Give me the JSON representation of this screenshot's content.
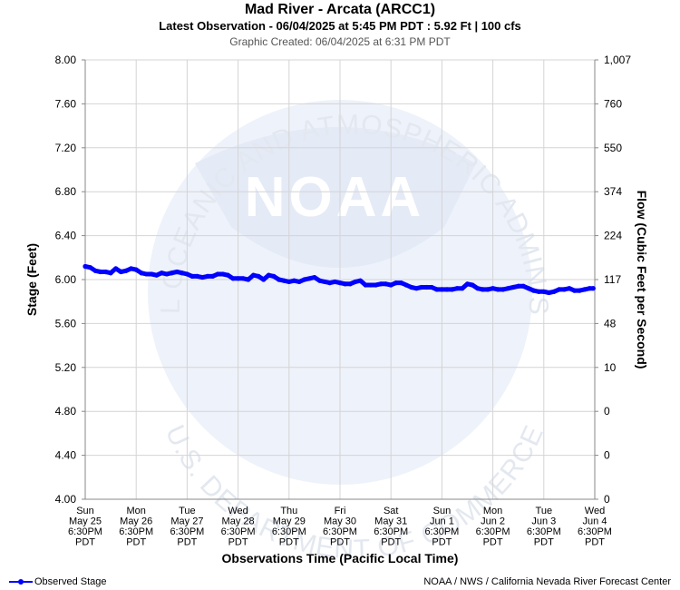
{
  "header": {
    "title": "Mad River - Arcata (ARCC1)",
    "subtitle": "Latest Observation - 06/04/2025 at 5:45 PM PDT : 5.92 Ft | 100 cfs",
    "created": "Graphic Created: 06/04/2025 at 6:31 PM PDT"
  },
  "watermark": {
    "agency_text": "NATIONAL OCEANIC AND ATMOSPHERIC ADMINISTRATION",
    "dept_text": "U.S. DEPARTMENT OF COMMERCE",
    "logo_text": "NOAA",
    "colors": {
      "circle": "#eef2fa",
      "band": "#e4eaf6",
      "inner": "#ffffff"
    }
  },
  "footer": {
    "legend_label": "Observed Stage",
    "credit": "NOAA / NWS / California Nevada River Forecast Center"
  },
  "chart_data": {
    "type": "line",
    "title": "Mad River - Arcata (ARCC1)",
    "xlabel": "Observations Time (Pacific Local Time)",
    "ylabel": "Stage (Feet)",
    "y2label": "Flow (Cubic Feet per Second)",
    "ylim": [
      4.0,
      8.0
    ],
    "yticks": [
      "4.00",
      "4.40",
      "4.80",
      "5.20",
      "5.60",
      "6.00",
      "6.40",
      "6.80",
      "7.20",
      "7.60",
      "8.00"
    ],
    "y2ticks": [
      "0",
      "0",
      "0",
      "10",
      "48",
      "117",
      "224",
      "374",
      "550",
      "760",
      "1,007"
    ],
    "xticks": [
      [
        "Sun",
        "May 25",
        "6:30PM",
        "PDT"
      ],
      [
        "Mon",
        "May 26",
        "6:30PM",
        "PDT"
      ],
      [
        "Tue",
        "May 27",
        "6:30PM",
        "PDT"
      ],
      [
        "Wed",
        "May 28",
        "6:30PM",
        "PDT"
      ],
      [
        "Thu",
        "May 29",
        "6:30PM",
        "PDT"
      ],
      [
        "Fri",
        "May 30",
        "6:30PM",
        "PDT"
      ],
      [
        "Sat",
        "May 31",
        "6:30PM",
        "PDT"
      ],
      [
        "Sun",
        "Jun 1",
        "6:30PM",
        "PDT"
      ],
      [
        "Mon",
        "Jun 2",
        "6:30PM",
        "PDT"
      ],
      [
        "Tue",
        "Jun 3",
        "6:30PM",
        "PDT"
      ],
      [
        "Wed",
        "Jun 4",
        "6:30PM",
        "PDT"
      ]
    ],
    "grid": true,
    "legend_position": "bottom-left",
    "series": [
      {
        "name": "Observed Stage",
        "color": "#0000ff",
        "x": [
          0,
          0.1,
          0.2,
          0.3,
          0.4,
          0.5,
          0.6,
          0.7,
          0.8,
          0.9,
          1.0,
          1.1,
          1.2,
          1.3,
          1.4,
          1.5,
          1.6,
          1.7,
          1.8,
          1.9,
          2.0,
          2.1,
          2.2,
          2.3,
          2.4,
          2.5,
          2.6,
          2.7,
          2.8,
          2.9,
          3.0,
          3.1,
          3.2,
          3.3,
          3.4,
          3.5,
          3.6,
          3.7,
          3.8,
          3.9,
          4.0,
          4.1,
          4.2,
          4.3,
          4.4,
          4.5,
          4.6,
          4.7,
          4.8,
          4.9,
          5.0,
          5.1,
          5.2,
          5.3,
          5.4,
          5.5,
          5.6,
          5.7,
          5.8,
          5.9,
          6.0,
          6.1,
          6.2,
          6.3,
          6.4,
          6.5,
          6.6,
          6.7,
          6.8,
          6.9,
          7.0,
          7.1,
          7.2,
          7.3,
          7.4,
          7.5,
          7.6,
          7.7,
          7.8,
          7.9,
          8.0,
          8.1,
          8.2,
          8.3,
          8.4,
          8.5,
          8.6,
          8.7,
          8.8,
          8.9,
          9.0,
          9.1,
          9.2,
          9.3,
          9.4,
          9.5,
          9.6,
          9.7,
          9.8,
          9.9,
          9.97
        ],
        "y": [
          6.12,
          6.11,
          6.08,
          6.07,
          6.07,
          6.06,
          6.1,
          6.07,
          6.08,
          6.1,
          6.09,
          6.06,
          6.05,
          6.05,
          6.04,
          6.06,
          6.05,
          6.06,
          6.07,
          6.06,
          6.05,
          6.03,
          6.03,
          6.02,
          6.03,
          6.03,
          6.05,
          6.05,
          6.04,
          6.01,
          6.01,
          6.01,
          6.0,
          6.04,
          6.03,
          6.0,
          6.04,
          6.03,
          6.0,
          5.99,
          5.98,
          5.99,
          5.98,
          6.0,
          6.01,
          6.02,
          5.99,
          5.98,
          5.97,
          5.98,
          5.97,
          5.96,
          5.96,
          5.98,
          5.99,
          5.95,
          5.95,
          5.95,
          5.96,
          5.96,
          5.95,
          5.97,
          5.97,
          5.95,
          5.93,
          5.92,
          5.93,
          5.93,
          5.93,
          5.91,
          5.91,
          5.91,
          5.91,
          5.92,
          5.92,
          5.96,
          5.95,
          5.92,
          5.91,
          5.91,
          5.92,
          5.91,
          5.91,
          5.92,
          5.93,
          5.94,
          5.94,
          5.92,
          5.9,
          5.89,
          5.89,
          5.88,
          5.89,
          5.91,
          5.91,
          5.92,
          5.9,
          5.9,
          5.91,
          5.92,
          5.92
        ]
      }
    ]
  }
}
